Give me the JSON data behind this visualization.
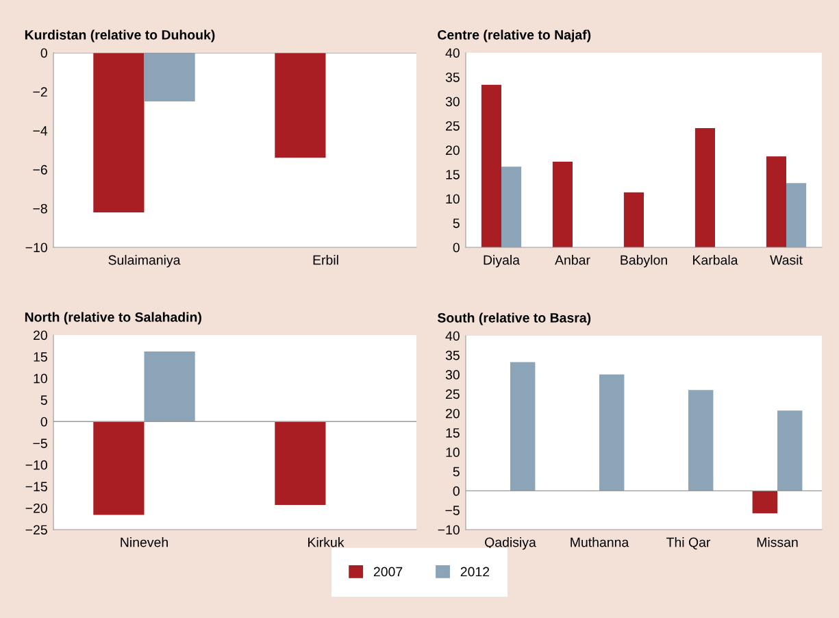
{
  "chart_data": [
    {
      "type": "bar",
      "title": "Kurdistan (relative to Duhouk)",
      "categories": [
        "Sulaimaniya",
        "Erbil"
      ],
      "series": [
        {
          "name": "2007",
          "color": "#a91e22",
          "values": [
            -8.2,
            -5.4
          ]
        },
        {
          "name": "2012",
          "color": "#8ca4b8",
          "values": [
            -2.5,
            null
          ]
        }
      ],
      "ylim": [
        -10,
        0
      ],
      "yticks": [
        {
          "value": -10,
          "label": "−10"
        },
        {
          "value": -8,
          "label": "−8"
        },
        {
          "value": -6,
          "label": "−6"
        },
        {
          "value": -4,
          "label": "−4"
        },
        {
          "value": -2,
          "label": "−2"
        },
        0
      ],
      "ref_lines": [
        {
          "axis": "y",
          "value": 0
        }
      ],
      "legend": "bottom"
    },
    {
      "type": "bar",
      "title": "Centre (relative to Najaf)",
      "categories": [
        "Diyala",
        "Anbar",
        "Babylon",
        "Karbala",
        "Wasit"
      ],
      "series": [
        {
          "name": "2007",
          "color": "#a91e22",
          "values": [
            33.4,
            17.6,
            11.3,
            24.5,
            18.7
          ]
        },
        {
          "name": "2012",
          "color": "#8ca4b8",
          "values": [
            16.6,
            null,
            null,
            null,
            13.2
          ]
        }
      ],
      "ylim": [
        0,
        40
      ],
      "yticks": [
        0,
        5,
        10,
        15,
        20,
        25,
        30,
        35,
        40
      ],
      "legend": "bottom"
    },
    {
      "type": "bar",
      "title": "North (relative to Salahadin)",
      "categories": [
        "Nineveh",
        "Kirkuk"
      ],
      "series": [
        {
          "name": "2007",
          "color": "#a91e22",
          "values": [
            -21.6,
            -19.3
          ]
        },
        {
          "name": "2012",
          "color": "#8ca4b8",
          "values": [
            16.2,
            null
          ]
        }
      ],
      "ylim": [
        -25,
        20
      ],
      "yticks": [
        {
          "value": -25,
          "label": "−25"
        },
        {
          "value": -20,
          "label": "−20"
        },
        {
          "value": -15,
          "label": "−15"
        },
        {
          "value": -10,
          "label": "−10"
        },
        {
          "value": -5,
          "label": "−5"
        },
        0,
        5,
        10,
        15,
        20
      ],
      "ref_lines": [
        {
          "axis": "y",
          "value": 0
        }
      ],
      "legend": "bottom"
    },
    {
      "type": "bar",
      "title": "South (relative to Basra)",
      "categories": [
        "Qadisiya",
        "Muthanna",
        "Thi Qar",
        "Missan"
      ],
      "series": [
        {
          "name": "2007",
          "color": "#a91e22",
          "values": [
            null,
            null,
            null,
            -5.8
          ]
        },
        {
          "name": "2012",
          "color": "#8ca4b8",
          "values": [
            33.2,
            30.0,
            26.0,
            20.7
          ]
        }
      ],
      "ylim": [
        -10,
        40
      ],
      "yticks": [
        {
          "value": -10,
          "label": "−10"
        },
        {
          "value": -5,
          "label": "−5"
        },
        0,
        5,
        10,
        15,
        20,
        25,
        30,
        35,
        40
      ],
      "ref_lines": [
        {
          "axis": "y",
          "value": 0
        }
      ],
      "legend": "bottom"
    }
  ]
}
